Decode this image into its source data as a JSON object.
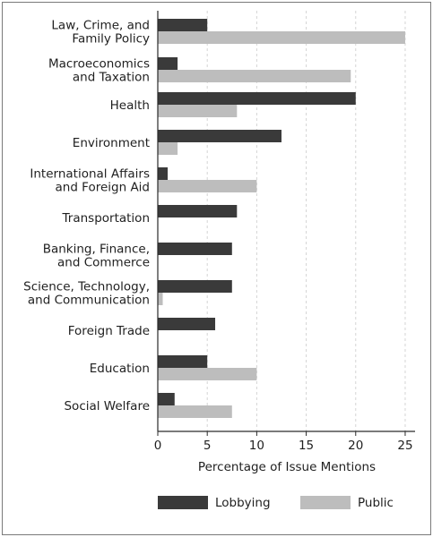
{
  "chart_data": {
    "type": "bar",
    "orientation": "horizontal",
    "categories": [
      [
        "Law, Crime, and",
        "Family Policy"
      ],
      [
        "Macroeconomics",
        "and Taxation"
      ],
      [
        "Health"
      ],
      [
        "Environment"
      ],
      [
        "International Affairs",
        "and Foreign Aid"
      ],
      [
        "Transportation"
      ],
      [
        "Banking, Finance,",
        "and Commerce"
      ],
      [
        "Science, Technology,",
        "and Communication"
      ],
      [
        "Foreign Trade"
      ],
      [
        "Education"
      ],
      [
        "Social Welfare"
      ]
    ],
    "series": [
      {
        "name": "Lobbying",
        "color": "#3a3a3a",
        "values": [
          5,
          2,
          20,
          12.5,
          1,
          8,
          7.5,
          7.5,
          5.8,
          5,
          1.7
        ]
      },
      {
        "name": "Public",
        "color": "#bdbdbd",
        "values": [
          25,
          19.5,
          8,
          2,
          10,
          0,
          0,
          0.5,
          0,
          10,
          7.5
        ]
      }
    ],
    "xlim": [
      0,
      26
    ],
    "xticks": [
      "0",
      "5",
      "10",
      "15",
      "20",
      "25"
    ],
    "xlabel": "Percentage of Issue Mentions",
    "ylabel": "",
    "grid": "vertical dashed",
    "legend_position": "bottom"
  }
}
